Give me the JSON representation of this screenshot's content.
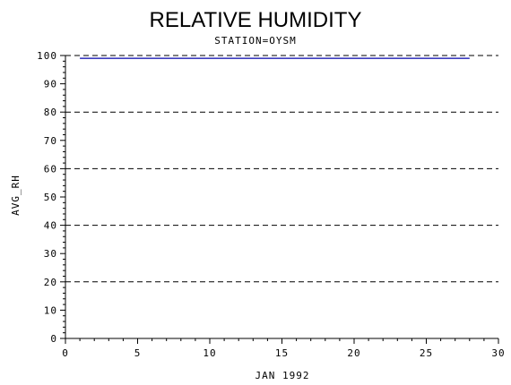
{
  "chart_data": {
    "type": "line",
    "title": "RELATIVE HUMIDITY",
    "subtitle": "STATION=OYSM",
    "xlabel": "JAN 1992",
    "ylabel": "AVG_RH",
    "xlim": [
      0,
      30
    ],
    "ylim": [
      0,
      100
    ],
    "x_ticks": [
      0,
      5,
      10,
      15,
      20,
      25,
      30
    ],
    "y_ticks": [
      0,
      10,
      20,
      30,
      40,
      50,
      60,
      70,
      80,
      90,
      100
    ],
    "grid_y": [
      0,
      20,
      40,
      60,
      80,
      100
    ],
    "grid": true,
    "series": [
      {
        "color": "#0000aa",
        "x": [
          1,
          28
        ],
        "y": [
          99,
          99
        ]
      }
    ]
  }
}
